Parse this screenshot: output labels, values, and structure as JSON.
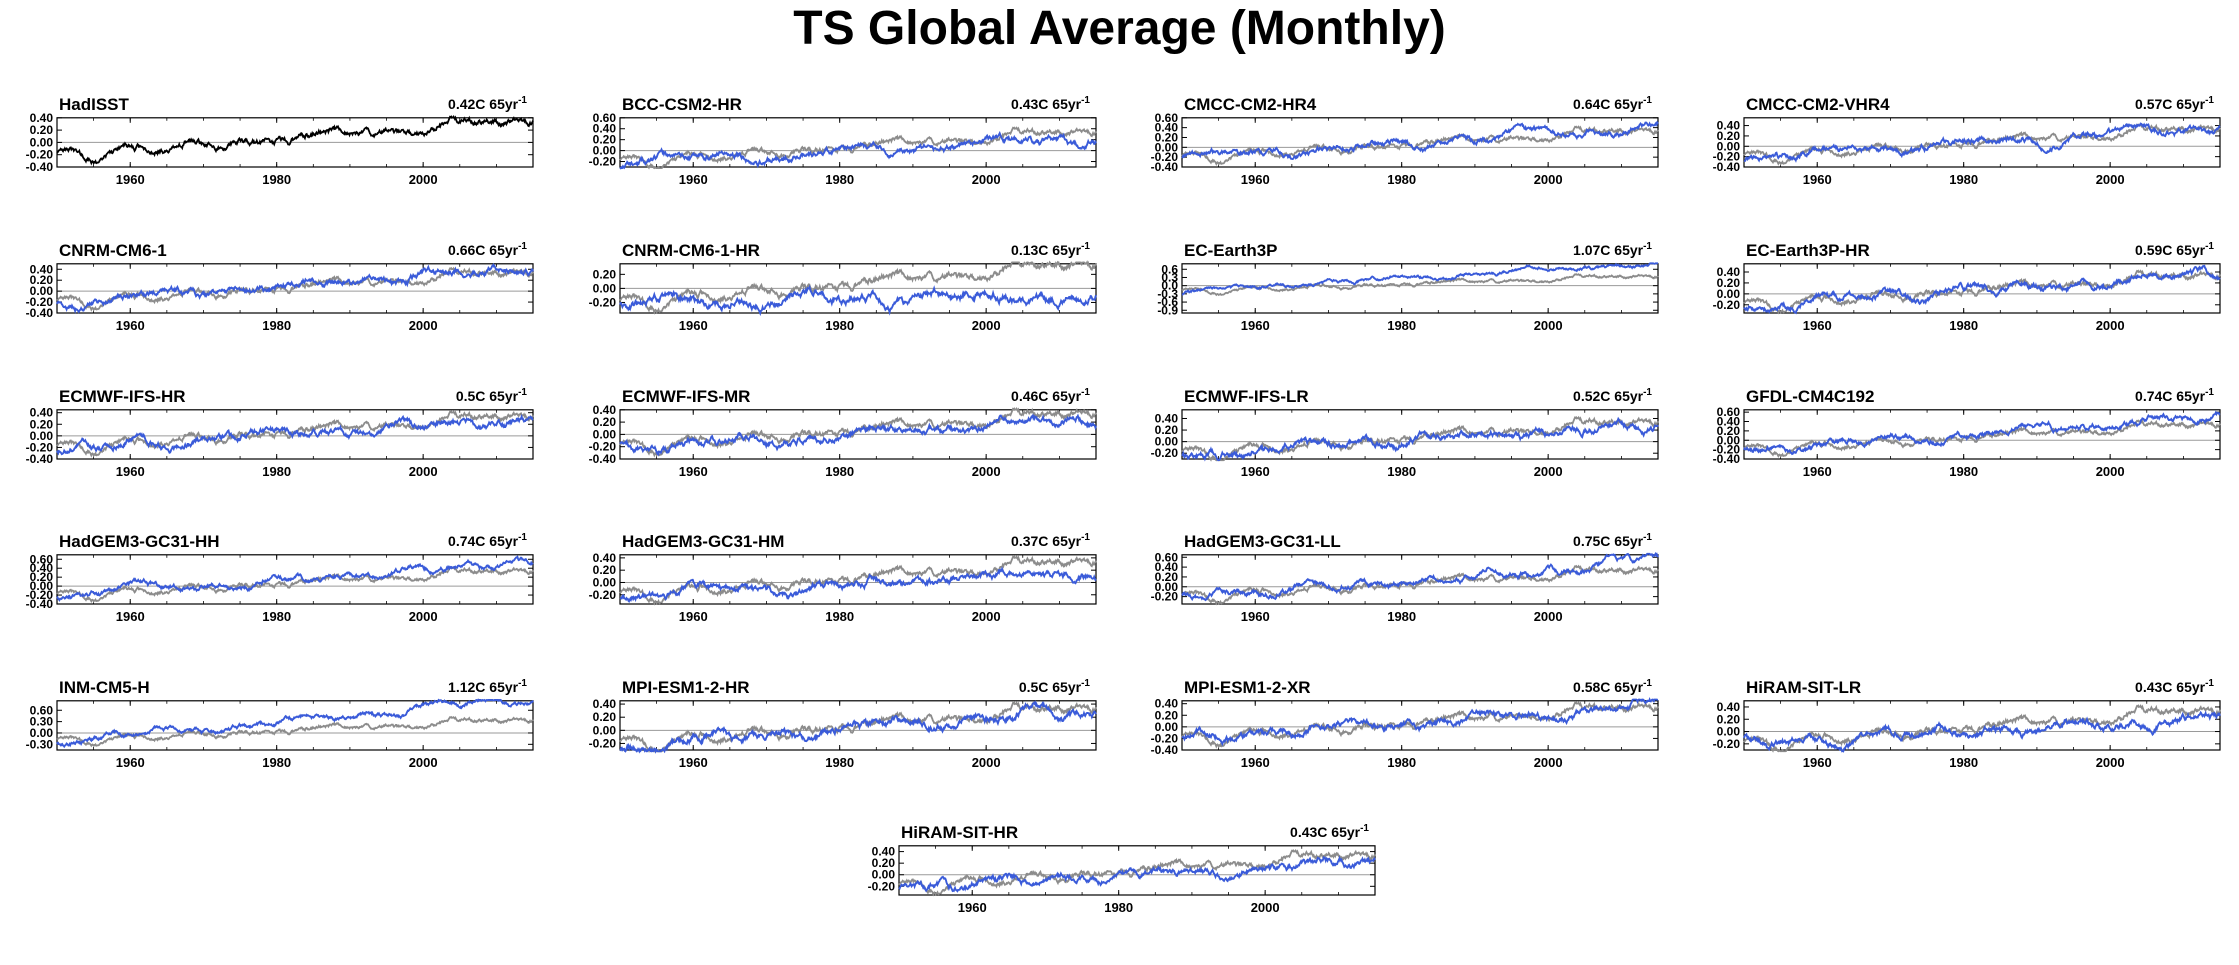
{
  "title": "TS Global Average (Monthly)",
  "colors": {
    "obs": "#000000",
    "model": "#3a5bd9",
    "reference": "#8c8c8c",
    "zero_line": "#9a9a9a"
  },
  "chart_data": [
    {
      "type": "line",
      "name": "HadISST",
      "trend": "0.42C 65yr",
      "trend_sup": "-1",
      "xlim": [
        1950,
        2015
      ],
      "ylim": [
        -0.4,
        0.4
      ],
      "yticks": [
        -0.4,
        -0.2,
        0,
        0.2,
        0.4
      ],
      "yticklabels": [
        "-0.40",
        "-0.20",
        "0.00",
        "0.20",
        "0.40"
      ],
      "xticks": [
        1960,
        1980,
        2000
      ],
      "obs_only": true,
      "model_trend": 0.42,
      "seed": 3
    },
    {
      "type": "line",
      "name": "BCC-CSM2-HR",
      "trend": "0.43C 65yr",
      "trend_sup": "-1",
      "xlim": [
        1950,
        2015
      ],
      "ylim": [
        -0.3,
        0.6
      ],
      "yticks": [
        -0.2,
        0,
        0.2,
        0.4,
        0.6
      ],
      "yticklabels": [
        "-0.20",
        "0.00",
        "0.20",
        "0.40",
        "0.60"
      ],
      "xticks": [
        1960,
        1980,
        2000
      ],
      "model_trend": 0.43,
      "seed": 11
    },
    {
      "type": "line",
      "name": "CMCC-CM2-HR4",
      "trend": "0.64C 65yr",
      "trend_sup": "-1",
      "xlim": [
        1950,
        2015
      ],
      "ylim": [
        -0.4,
        0.6
      ],
      "yticks": [
        -0.4,
        -0.2,
        0,
        0.2,
        0.4,
        0.6
      ],
      "yticklabels": [
        "-0.40",
        "-0.20",
        "0.00",
        "0.20",
        "0.40",
        "0.60"
      ],
      "xticks": [
        1960,
        1980,
        2000
      ],
      "model_trend": 0.64,
      "seed": 19
    },
    {
      "type": "line",
      "name": "CMCC-CM2-VHR4",
      "trend": "0.57C 65yr",
      "trend_sup": "-1",
      "xlim": [
        1950,
        2015
      ],
      "ylim": [
        -0.4,
        0.55
      ],
      "yticks": [
        -0.4,
        -0.2,
        0,
        0.2,
        0.4
      ],
      "yticklabels": [
        "-0.40",
        "-0.20",
        "0.00",
        "0.20",
        "0.40"
      ],
      "xticks": [
        1960,
        1980,
        2000
      ],
      "model_trend": 0.57,
      "seed": 23
    },
    {
      "type": "line",
      "name": "CNRM-CM6-1",
      "trend": "0.66C 65yr",
      "trend_sup": "-1",
      "xlim": [
        1950,
        2015
      ],
      "ylim": [
        -0.4,
        0.5
      ],
      "yticks": [
        -0.4,
        -0.2,
        0,
        0.2,
        0.4
      ],
      "yticklabels": [
        "-0.40",
        "-0.20",
        "0.00",
        "0.20",
        "0.40"
      ],
      "xticks": [
        1960,
        1980,
        2000
      ],
      "model_trend": 0.66,
      "seed": 29
    },
    {
      "type": "line",
      "name": "CNRM-CM6-1-HR",
      "trend": "0.13C 65yr",
      "trend_sup": "-1",
      "xlim": [
        1950,
        2015
      ],
      "ylim": [
        -0.35,
        0.35
      ],
      "yticks": [
        -0.2,
        0,
        0.2
      ],
      "yticklabels": [
        "-0.20",
        "0.00",
        "0.20"
      ],
      "xticks": [
        1960,
        1980,
        2000
      ],
      "model_trend": 0.13,
      "seed": 31
    },
    {
      "type": "line",
      "name": "EC-Earth3P",
      "trend": "1.07C 65yr",
      "trend_sup": "-1",
      "xlim": [
        1950,
        2015
      ],
      "ylim": [
        -1.0,
        0.8
      ],
      "yticks": [
        -0.9,
        -0.6,
        -0.3,
        0,
        0.3,
        0.6
      ],
      "yticklabels": [
        "-0.9",
        "-0.6",
        "-0.3",
        "0.0",
        "0.3",
        "0.6"
      ],
      "xticks": [
        1960,
        1980,
        2000
      ],
      "model_trend": 1.07,
      "seed": 37
    },
    {
      "type": "line",
      "name": "EC-Earth3P-HR",
      "trend": "0.59C 65yr",
      "trend_sup": "-1",
      "xlim": [
        1950,
        2015
      ],
      "ylim": [
        -0.35,
        0.55
      ],
      "yticks": [
        -0.2,
        0,
        0.2,
        0.4
      ],
      "yticklabels": [
        "-0.20",
        "0.00",
        "0.20",
        "0.40"
      ],
      "xticks": [
        1960,
        1980,
        2000
      ],
      "model_trend": 0.59,
      "seed": 41
    },
    {
      "type": "line",
      "name": "ECMWF-IFS-HR",
      "trend": "0.5C 65yr",
      "trend_sup": "-1",
      "xlim": [
        1950,
        2015
      ],
      "ylim": [
        -0.4,
        0.45
      ],
      "yticks": [
        -0.4,
        -0.2,
        0,
        0.2,
        0.4
      ],
      "yticklabels": [
        "-0.40",
        "-0.20",
        "0.00",
        "0.20",
        "0.40"
      ],
      "xticks": [
        1960,
        1980,
        2000
      ],
      "model_trend": 0.5,
      "seed": 43
    },
    {
      "type": "line",
      "name": "ECMWF-IFS-MR",
      "trend": "0.46C 65yr",
      "trend_sup": "-1",
      "xlim": [
        1950,
        2015
      ],
      "ylim": [
        -0.4,
        0.4
      ],
      "yticks": [
        -0.4,
        -0.2,
        0,
        0.2,
        0.4
      ],
      "yticklabels": [
        "-0.40",
        "-0.20",
        "0.00",
        "0.20",
        "0.40"
      ],
      "xticks": [
        1960,
        1980,
        2000
      ],
      "model_trend": 0.46,
      "seed": 47
    },
    {
      "type": "line",
      "name": "ECMWF-IFS-LR",
      "trend": "0.52C 65yr",
      "trend_sup": "-1",
      "xlim": [
        1950,
        2015
      ],
      "ylim": [
        -0.3,
        0.55
      ],
      "yticks": [
        -0.2,
        0,
        0.2,
        0.4
      ],
      "yticklabels": [
        "-0.20",
        "0.00",
        "0.20",
        "0.40"
      ],
      "xticks": [
        1960,
        1980,
        2000
      ],
      "model_trend": 0.52,
      "seed": 53
    },
    {
      "type": "line",
      "name": "GFDL-CM4C192",
      "trend": "0.74C 65yr",
      "trend_sup": "-1",
      "xlim": [
        1950,
        2015
      ],
      "ylim": [
        -0.4,
        0.65
      ],
      "yticks": [
        -0.4,
        -0.2,
        0,
        0.2,
        0.4,
        0.6
      ],
      "yticklabels": [
        "-0.40",
        "-0.20",
        "0.00",
        "0.20",
        "0.40",
        "0.60"
      ],
      "xticks": [
        1960,
        1980,
        2000
      ],
      "model_trend": 0.74,
      "seed": 59
    },
    {
      "type": "line",
      "name": "HadGEM3-GC31-HH",
      "trend": "0.74C 65yr",
      "trend_sup": "-1",
      "xlim": [
        1950,
        2015
      ],
      "ylim": [
        -0.4,
        0.7
      ],
      "yticks": [
        -0.4,
        -0.2,
        0,
        0.2,
        0.4,
        0.6
      ],
      "yticklabels": [
        "-0.40",
        "-0.20",
        "0.00",
        "0.20",
        "0.40",
        "0.60"
      ],
      "xticks": [
        1960,
        1980,
        2000
      ],
      "model_trend": 0.74,
      "seed": 61
    },
    {
      "type": "line",
      "name": "HadGEM3-GC31-HM",
      "trend": "0.37C 65yr",
      "trend_sup": "-1",
      "xlim": [
        1950,
        2015
      ],
      "ylim": [
        -0.35,
        0.45
      ],
      "yticks": [
        -0.2,
        0,
        0.2,
        0.4
      ],
      "yticklabels": [
        "-0.20",
        "0.00",
        "0.20",
        "0.40"
      ],
      "xticks": [
        1960,
        1980,
        2000
      ],
      "model_trend": 0.37,
      "seed": 67
    },
    {
      "type": "line",
      "name": "HadGEM3-GC31-LL",
      "trend": "0.75C 65yr",
      "trend_sup": "-1",
      "xlim": [
        1950,
        2015
      ],
      "ylim": [
        -0.35,
        0.65
      ],
      "yticks": [
        -0.2,
        0,
        0.2,
        0.4,
        0.6
      ],
      "yticklabels": [
        "-0.20",
        "0.00",
        "0.20",
        "0.40",
        "0.60"
      ],
      "xticks": [
        1960,
        1980,
        2000
      ],
      "model_trend": 0.75,
      "seed": 71
    },
    {
      "type": "line",
      "name": "INM-CM5-H",
      "trend": "1.12C 65yr",
      "trend_sup": "-1",
      "xlim": [
        1950,
        2015
      ],
      "ylim": [
        -0.45,
        0.85
      ],
      "yticks": [
        -0.3,
        0,
        0.3,
        0.6
      ],
      "yticklabels": [
        "-0.30",
        "0.00",
        "0.30",
        "0.60"
      ],
      "xticks": [
        1960,
        1980,
        2000
      ],
      "model_trend": 1.12,
      "seed": 73
    },
    {
      "type": "line",
      "name": "MPI-ESM1-2-HR",
      "trend": "0.5C 65yr",
      "trend_sup": "-1",
      "xlim": [
        1950,
        2015
      ],
      "ylim": [
        -0.3,
        0.45
      ],
      "yticks": [
        -0.2,
        0,
        0.2,
        0.4
      ],
      "yticklabels": [
        "-0.20",
        "0.00",
        "0.20",
        "0.40"
      ],
      "xticks": [
        1960,
        1980,
        2000
      ],
      "model_trend": 0.5,
      "seed": 79
    },
    {
      "type": "line",
      "name": "MPI-ESM1-2-XR",
      "trend": "0.58C 65yr",
      "trend_sup": "-1",
      "xlim": [
        1950,
        2015
      ],
      "ylim": [
        -0.4,
        0.45
      ],
      "yticks": [
        -0.4,
        -0.2,
        0,
        0.2,
        0.4
      ],
      "yticklabels": [
        "-0.40",
        "-0.20",
        "0.00",
        "0.20",
        "0.40"
      ],
      "xticks": [
        1960,
        1980,
        2000
      ],
      "model_trend": 0.58,
      "seed": 83
    },
    {
      "type": "line",
      "name": "HiRAM-SIT-LR",
      "trend": "0.43C 65yr",
      "trend_sup": "-1",
      "xlim": [
        1950,
        2015
      ],
      "ylim": [
        -0.3,
        0.5
      ],
      "yticks": [
        -0.2,
        0,
        0.2,
        0.4
      ],
      "yticklabels": [
        "-0.20",
        "0.00",
        "0.20",
        "0.40"
      ],
      "xticks": [
        1960,
        1980,
        2000
      ],
      "model_trend": 0.43,
      "seed": 89
    },
    {
      "type": "line",
      "name": "HiRAM-SIT-HR",
      "trend": "0.43C 65yr",
      "trend_sup": "-1",
      "xlim": [
        1950,
        2015
      ],
      "ylim": [
        -0.35,
        0.5
      ],
      "yticks": [
        -0.2,
        0,
        0.2,
        0.4
      ],
      "yticklabels": [
        "-0.20",
        "0.00",
        "0.20",
        "0.40"
      ],
      "xticks": [
        1960,
        1980,
        2000
      ],
      "model_trend": 0.43,
      "seed": 97
    }
  ]
}
